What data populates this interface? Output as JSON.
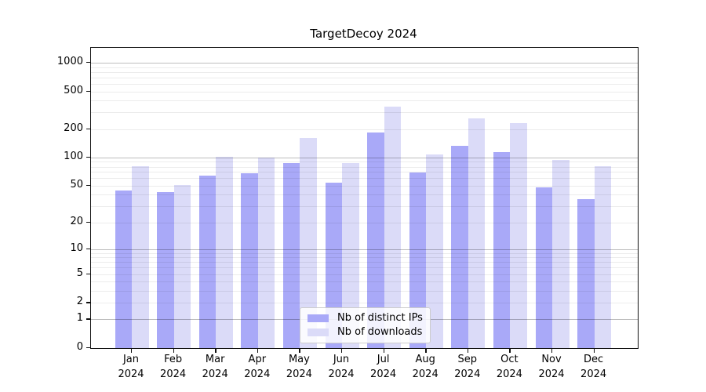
{
  "title": "TargetDecoy 2024",
  "chart_data": {
    "type": "bar",
    "title": "TargetDecoy 2024",
    "yscale": "symlog (positions follow log10(1+value))",
    "grid": true,
    "legend_position": "lower center",
    "categories": [
      "Jan 2024",
      "Feb 2024",
      "Mar 2024",
      "Apr 2024",
      "May 2024",
      "Jun 2024",
      "Jul 2024",
      "Aug 2024",
      "Sep 2024",
      "Oct 2024",
      "Nov 2024",
      "Dec 2024"
    ],
    "months": [
      "Jan",
      "Feb",
      "Mar",
      "Apr",
      "May",
      "Jun",
      "Jul",
      "Aug",
      "Sep",
      "Oct",
      "Nov",
      "Dec"
    ],
    "year": "2024",
    "series": [
      {
        "name": "Nb of distinct IPs",
        "color": "#a9a9f8",
        "values": [
          44,
          43,
          64,
          68,
          87,
          54,
          185,
          69,
          133,
          114,
          48,
          36
        ]
      },
      {
        "name": "Nb of downloads",
        "color": "#dbdbf8",
        "values": [
          81,
          51,
          102,
          99,
          161,
          88,
          344,
          108,
          260,
          233,
          94,
          81
        ]
      }
    ],
    "y_ticks": [
      0,
      1,
      2,
      5,
      10,
      20,
      50,
      100,
      200,
      500,
      1000
    ],
    "ylim": [
      0,
      1436
    ],
    "xlabel": "",
    "ylabel": ""
  },
  "colors": {
    "bar_distinct_ips": "#a9a9f8",
    "bar_downloads": "#dbdbf8",
    "grid_minor": "#ececec",
    "grid_major": "#bdbdbd",
    "spine": "#111111",
    "legend_border": "#cccccc"
  }
}
